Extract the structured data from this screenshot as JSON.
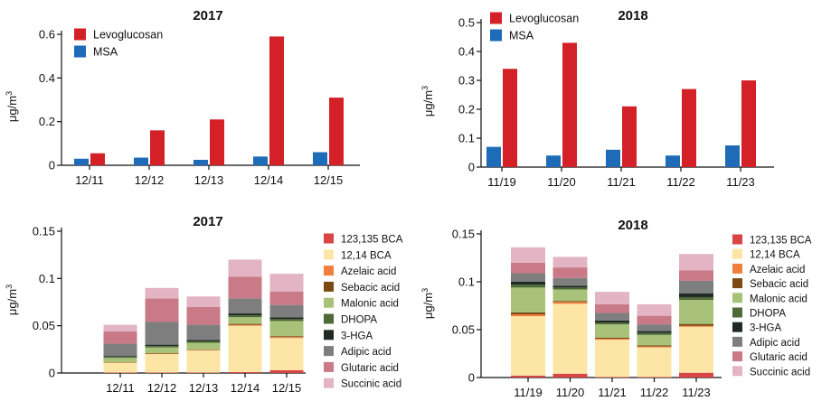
{
  "chart_data": [
    {
      "type": "bar",
      "title": "2017",
      "ylabel": "μg/m",
      "ylabel_sup": "3",
      "ylim": [
        0,
        0.6
      ],
      "yticks": [
        0,
        0.2,
        0.4,
        0.6
      ],
      "ytick_labels": [
        "0",
        "0.2",
        "0.4",
        "0.6"
      ],
      "categories": [
        "12/11",
        "12/12",
        "12/13",
        "12/14",
        "12/15"
      ],
      "series": [
        {
          "name": "Levoglucosan",
          "color": "#d42027",
          "values": [
            0.055,
            0.16,
            0.21,
            0.59,
            0.31
          ]
        },
        {
          "name": "MSA",
          "color": "#1e6bb8",
          "values": [
            0.03,
            0.035,
            0.025,
            0.04,
            0.06
          ]
        }
      ],
      "legend_location": "top-left"
    },
    {
      "type": "bar",
      "title": "2018",
      "ylabel": "μg/m",
      "ylabel_sup": "3",
      "ylim": [
        0,
        0.5
      ],
      "yticks": [
        0,
        0.1,
        0.2,
        0.3,
        0.4,
        0.5
      ],
      "ytick_labels": [
        "0",
        "0.1",
        "0.2",
        "0.3",
        "0.4",
        "0.5"
      ],
      "categories": [
        "11/19",
        "11/20",
        "11/21",
        "11/22",
        "11/23"
      ],
      "series": [
        {
          "name": "Levoglucosan",
          "color": "#d42027",
          "values": [
            0.34,
            0.43,
            0.21,
            0.27,
            0.3
          ]
        },
        {
          "name": "MSA",
          "color": "#1e6bb8",
          "values": [
            0.07,
            0.04,
            0.06,
            0.04,
            0.075
          ]
        }
      ],
      "legend_location": "top-left"
    },
    {
      "type": "stacked-bar",
      "title": "2017",
      "ylabel": "μg/m",
      "ylabel_sup": "3",
      "ylim": [
        0,
        0.15
      ],
      "yticks": [
        0,
        0.05,
        0.1,
        0.15
      ],
      "ytick_labels": [
        "0",
        "0.05",
        "0.1",
        "0.15"
      ],
      "categories": [
        "12/11",
        "12/12",
        "12/13",
        "12/14",
        "12/15"
      ],
      "series": [
        {
          "name": "123,135 BCA",
          "color": "#d94545",
          "values": [
            0.0005,
            0.0005,
            0.0005,
            0.001,
            0.003
          ]
        },
        {
          "name": "12,14 BCA",
          "color": "#fde6a5",
          "values": [
            0.0105,
            0.0195,
            0.0235,
            0.049,
            0.034
          ]
        },
        {
          "name": "Azelaic acid",
          "color": "#f07f3c",
          "values": [
            0.0003,
            0.0005,
            0.0005,
            0.001,
            0.001
          ]
        },
        {
          "name": "Sebacic acid",
          "color": "#7a4a12",
          "values": [
            0.0002,
            0.0005,
            0.0005,
            0.001,
            0.001
          ]
        },
        {
          "name": "Malonic acid",
          "color": "#a8c27a",
          "values": [
            0.0045,
            0.006,
            0.007,
            0.007,
            0.016
          ]
        },
        {
          "name": "DHOPA",
          "color": "#4e6a37",
          "values": [
            0.001,
            0.0015,
            0.0015,
            0.002,
            0.002
          ]
        },
        {
          "name": "3-HGA",
          "color": "#1f2a24",
          "values": [
            0.001,
            0.0015,
            0.0015,
            0.002,
            0.002
          ]
        },
        {
          "name": "Adipic acid",
          "color": "#7e7e7e",
          "values": [
            0.013,
            0.024,
            0.016,
            0.016,
            0.013
          ]
        },
        {
          "name": "Glutaric acid",
          "color": "#c97a86",
          "values": [
            0.013,
            0.025,
            0.019,
            0.023,
            0.014
          ]
        },
        {
          "name": "Succinic acid",
          "color": "#e3b5c4",
          "values": [
            0.007,
            0.011,
            0.011,
            0.018,
            0.019
          ]
        }
      ]
    },
    {
      "type": "stacked-bar",
      "title": "2018",
      "ylabel": "μg/m",
      "ylabel_sup": "3",
      "ylim": [
        0,
        0.15
      ],
      "yticks": [
        0,
        0.05,
        0.1,
        0.15
      ],
      "ytick_labels": [
        "0",
        "0.05",
        "0.1",
        "0.15"
      ],
      "categories": [
        "11/19",
        "11/20",
        "11/21",
        "11/22",
        "11/23"
      ],
      "series": [
        {
          "name": "123,135 BCA",
          "color": "#d94545",
          "values": [
            0.002,
            0.004,
            0.0005,
            0.0005,
            0.005
          ]
        },
        {
          "name": "12,14 BCA",
          "color": "#fde6a5",
          "values": [
            0.062,
            0.073,
            0.039,
            0.031,
            0.048
          ]
        },
        {
          "name": "Azelaic acid",
          "color": "#f07f3c",
          "values": [
            0.002,
            0.002,
            0.001,
            0.001,
            0.001
          ]
        },
        {
          "name": "Sebacic acid",
          "color": "#7a4a12",
          "values": [
            0.002,
            0.001,
            0.001,
            0.001,
            0.002
          ]
        },
        {
          "name": "Malonic acid",
          "color": "#a8c27a",
          "values": [
            0.026,
            0.012,
            0.014,
            0.011,
            0.025
          ]
        },
        {
          "name": "DHOPA",
          "color": "#4e6a37",
          "values": [
            0.003,
            0.002,
            0.002,
            0.002,
            0.003
          ]
        },
        {
          "name": "3-HGA",
          "color": "#1f2a24",
          "values": [
            0.003,
            0.002,
            0.002,
            0.002,
            0.004
          ]
        },
        {
          "name": "Adipic acid",
          "color": "#7e7e7e",
          "values": [
            0.009,
            0.008,
            0.008,
            0.007,
            0.013
          ]
        },
        {
          "name": "Glutaric acid",
          "color": "#c97a86",
          "values": [
            0.011,
            0.011,
            0.009,
            0.009,
            0.011
          ]
        },
        {
          "name": "Succinic acid",
          "color": "#e3b5c4",
          "values": [
            0.016,
            0.011,
            0.013,
            0.012,
            0.017
          ]
        }
      ]
    }
  ]
}
